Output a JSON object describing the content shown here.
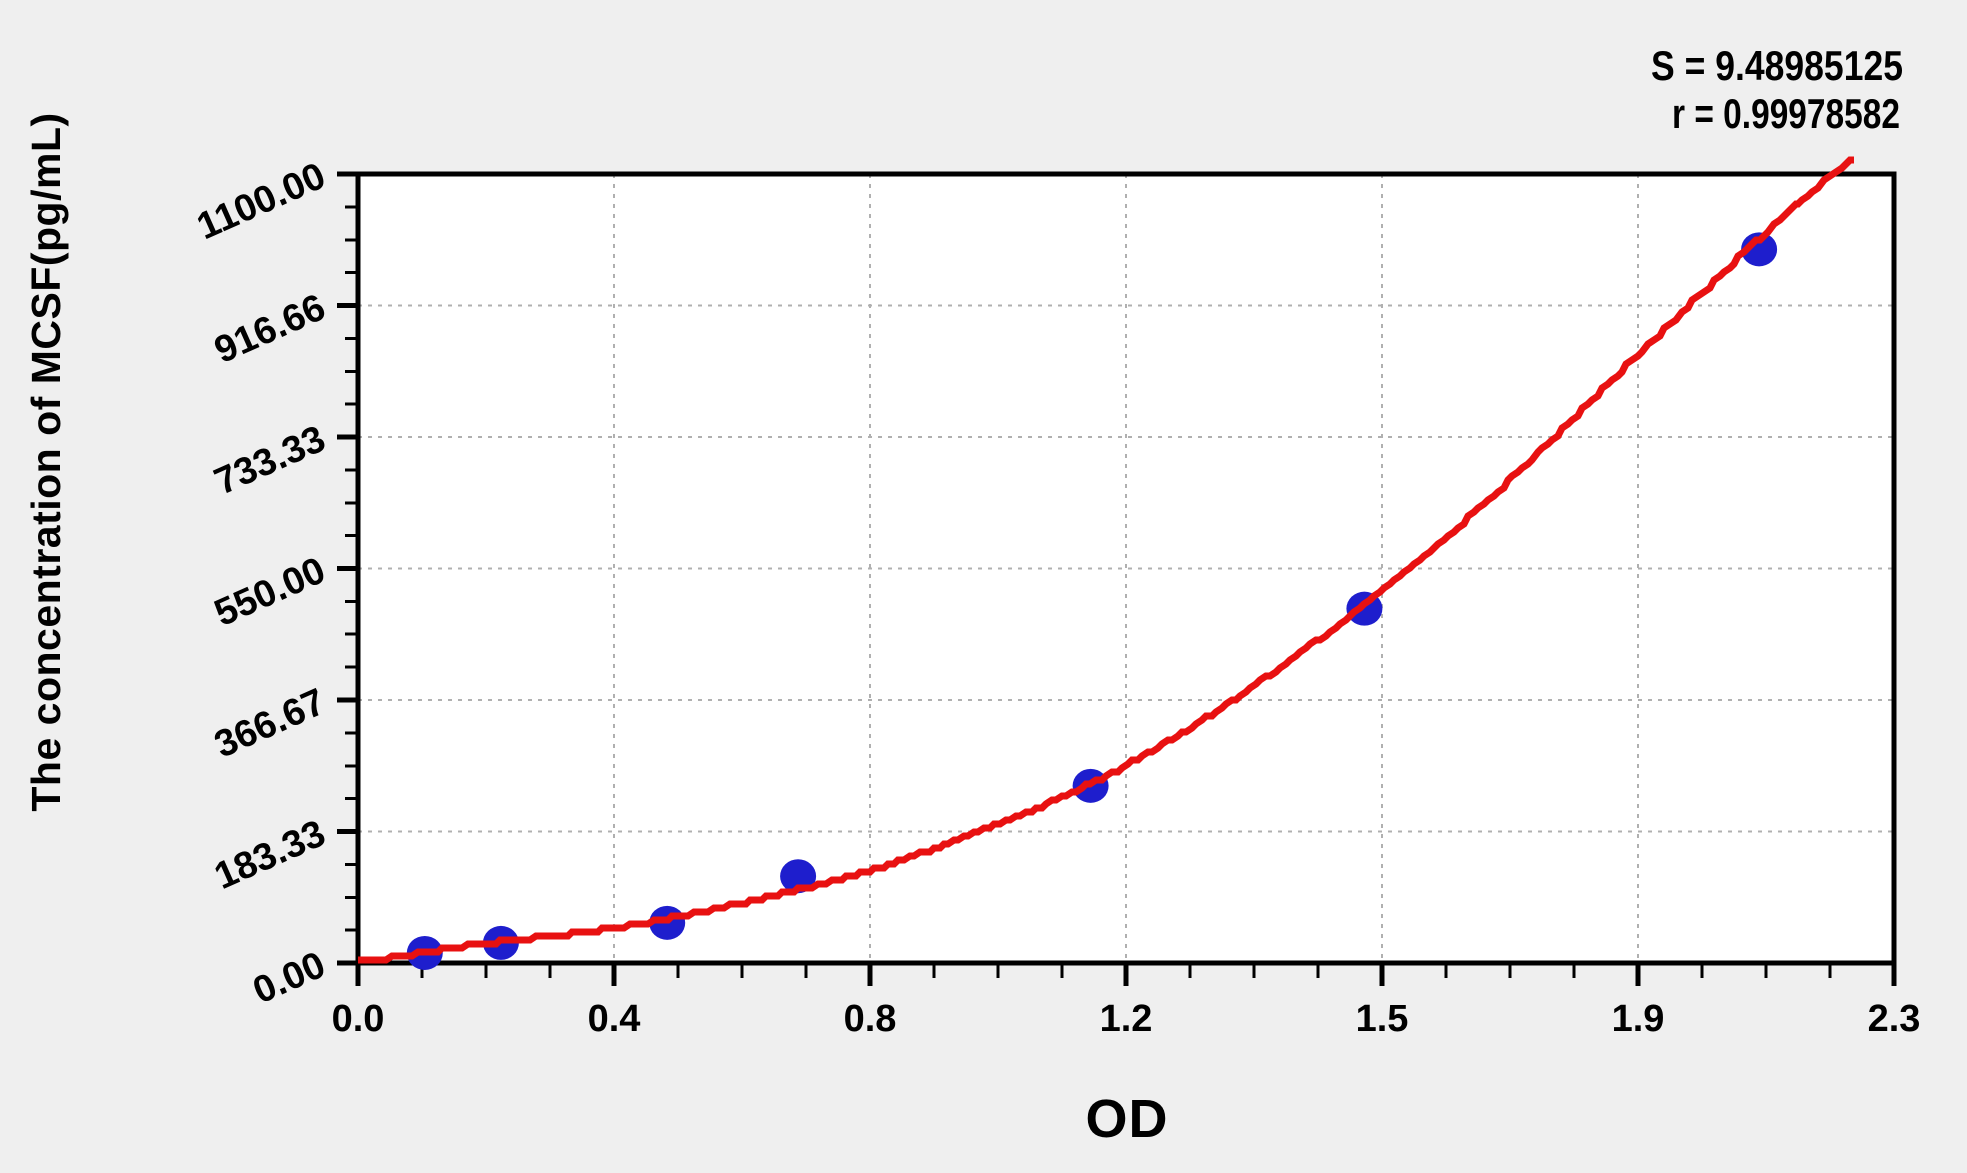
{
  "annotation": {
    "s_label": "S = 9.48985125",
    "r_label": "r = 0.99978582"
  },
  "chart_data": {
    "type": "scatter",
    "title": "",
    "xlabel": "OD",
    "ylabel": "The concentration of MCSF(pg/mL)",
    "xlim": [
      0,
      2.3
    ],
    "ylim": [
      0,
      1100
    ],
    "grid": "dashed major gridlines, interior only",
    "legend": "none",
    "x_ticks": {
      "values": [
        0,
        0.38333,
        0.76667,
        1.15,
        1.53333,
        1.91667,
        2.3
      ],
      "labels": [
        "0.0",
        "0.4",
        "0.8",
        "1.2",
        "1.5",
        "1.9",
        "2.3"
      ],
      "minor_subdivisions": 4
    },
    "y_ticks": {
      "values": [
        0,
        183.33,
        366.67,
        550.0,
        733.33,
        916.66,
        1100.0
      ],
      "labels": [
        "0.00",
        "183.33",
        "366.67",
        "550.00",
        "733.33",
        "916.66",
        "1100.00"
      ],
      "minor_subdivisions": 4,
      "label_rotation_deg": -24
    },
    "series": [
      {
        "name": "standard-points",
        "marker": "filled-circle",
        "points_od_conc": [
          [
            0.1,
            14
          ],
          [
            0.214,
            28
          ],
          [
            0.463,
            56
          ],
          [
            0.659,
            121
          ],
          [
            1.097,
            247
          ],
          [
            1.507,
            494
          ],
          [
            2.098,
            995
          ]
        ]
      },
      {
        "name": "fitted-curve",
        "style": "stepped-line",
        "anchors_od_conc": [
          [
            0.0,
            2
          ],
          [
            0.05,
            7
          ],
          [
            0.1,
            15
          ],
          [
            0.214,
            30
          ],
          [
            0.35,
            44
          ],
          [
            0.463,
            62
          ],
          [
            0.659,
            102
          ],
          [
            0.85,
            155
          ],
          [
            1.097,
            250
          ],
          [
            1.3,
            360
          ],
          [
            1.507,
            500
          ],
          [
            1.7,
            652
          ],
          [
            1.9,
            833
          ],
          [
            2.098,
            1010
          ],
          [
            2.17,
            1070
          ],
          [
            2.24,
            1122
          ]
        ]
      }
    ],
    "stats": {
      "S": 9.48985125,
      "r": 0.99978582
    },
    "colors": {
      "point_fill": "#1e1ecd",
      "curve_stroke": "#e81111",
      "grid_stroke": "#b0b0b0",
      "axis_stroke": "#000000",
      "plot_background": "#ffffff",
      "figure_background": "#efefef"
    }
  }
}
